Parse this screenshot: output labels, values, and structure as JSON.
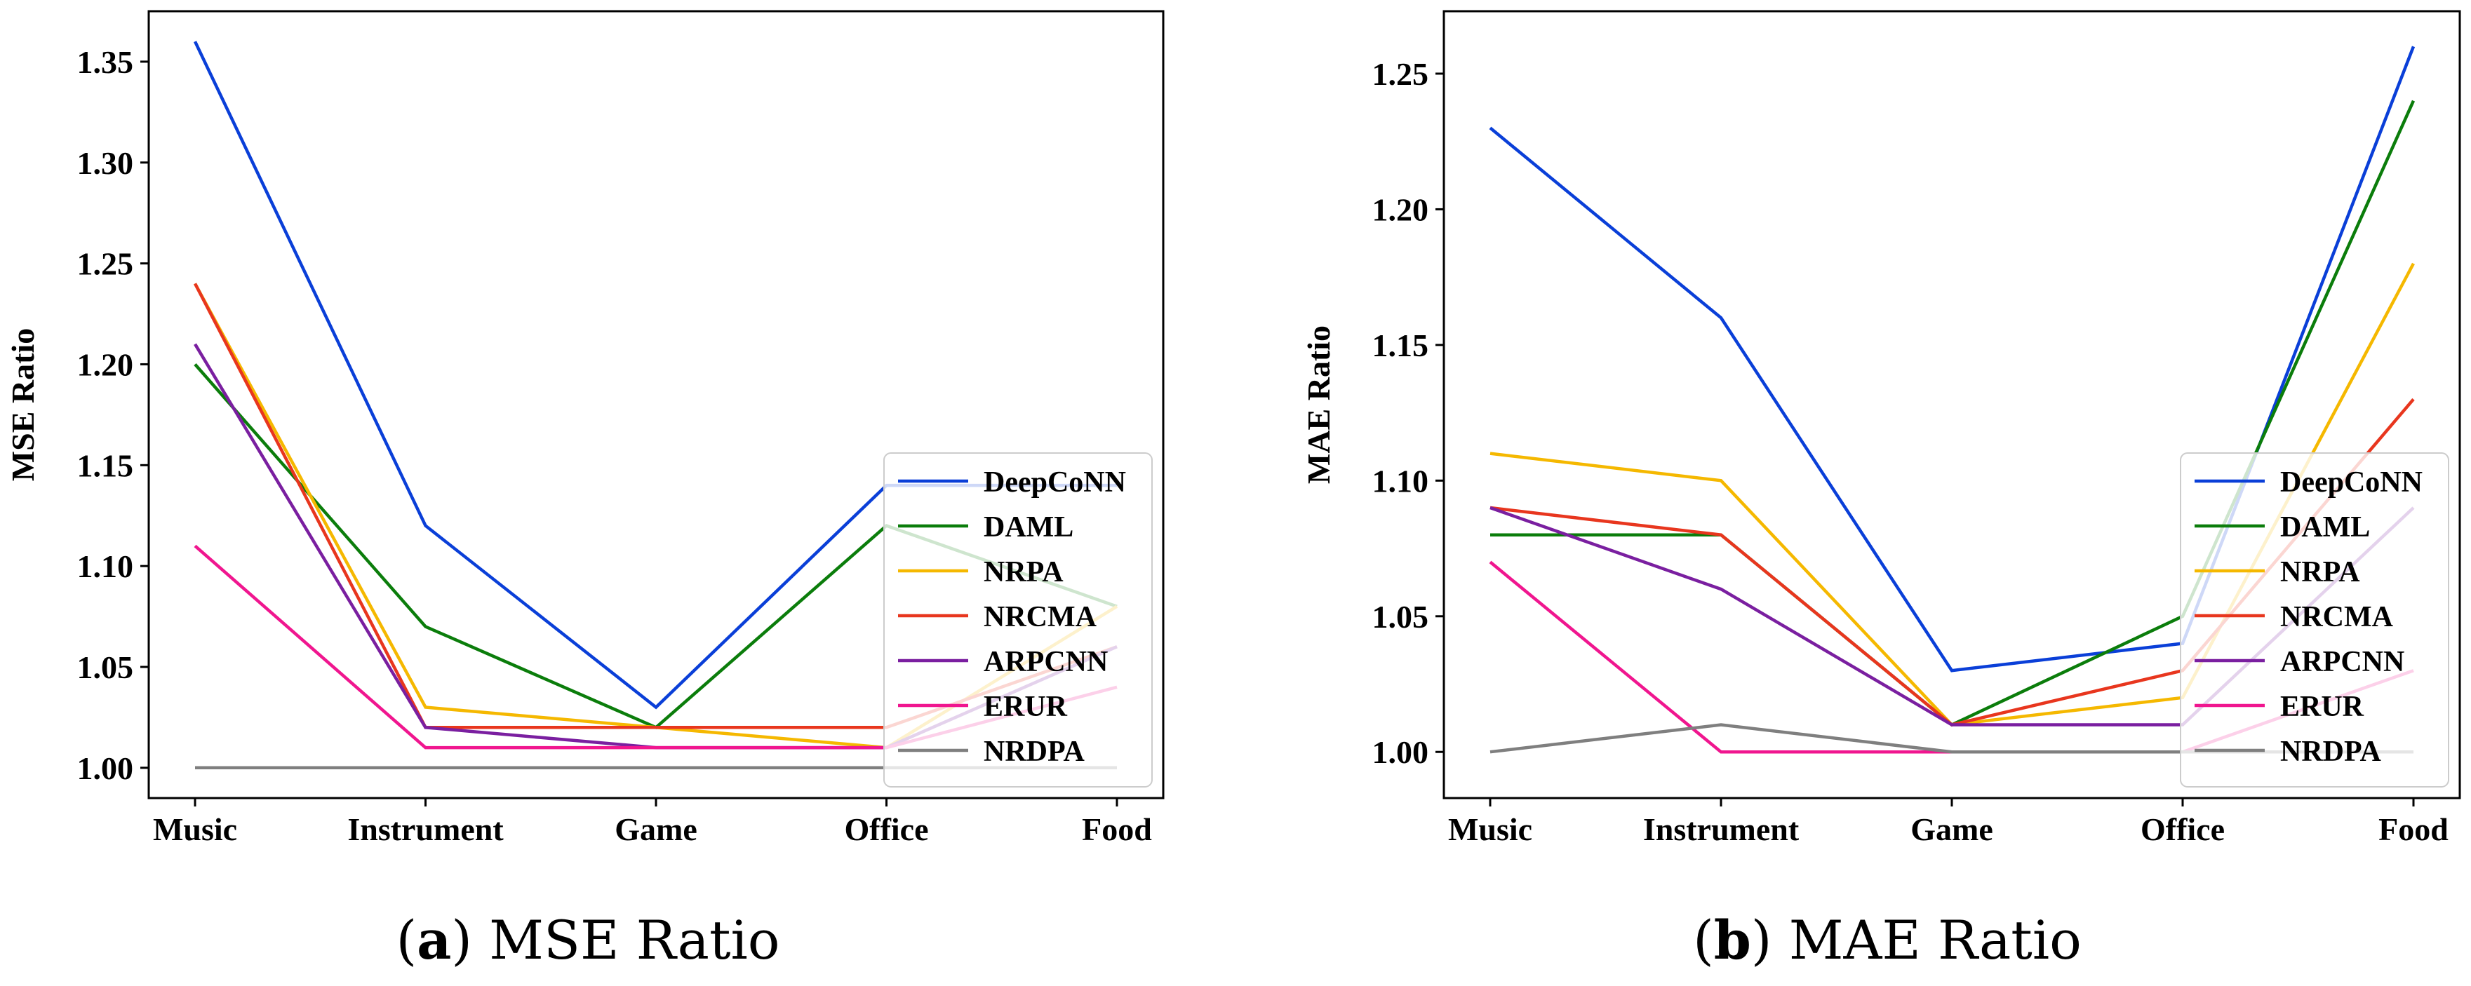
{
  "chart_data": [
    {
      "type": "line",
      "caption_letter": "a",
      "caption_title": "MSE Ratio",
      "ylabel": "MSE Ratio",
      "xlabel": "",
      "categories": [
        "Music",
        "Instrument",
        "Game",
        "Office",
        "Food"
      ],
      "ylim": [
        0.985,
        1.375
      ],
      "yticks": [
        "1.00",
        "1.05",
        "1.10",
        "1.15",
        "1.20",
        "1.25",
        "1.30",
        "1.35"
      ],
      "legend_position": "lower-right",
      "series": [
        {
          "name": "DeepCoNN",
          "color": "#0a3fd8",
          "values": [
            1.36,
            1.12,
            1.03,
            1.14,
            1.14
          ]
        },
        {
          "name": "DAML",
          "color": "#0b7d0b",
          "values": [
            1.2,
            1.07,
            1.02,
            1.12,
            1.08
          ]
        },
        {
          "name": "NRPA",
          "color": "#f5b800",
          "values": [
            1.24,
            1.03,
            1.02,
            1.01,
            1.08
          ]
        },
        {
          "name": "NRCMA",
          "color": "#e8361e",
          "values": [
            1.24,
            1.02,
            1.02,
            1.02,
            1.06
          ]
        },
        {
          "name": "ARPCNN",
          "color": "#7a1fa0",
          "values": [
            1.21,
            1.02,
            1.01,
            1.01,
            1.06
          ]
        },
        {
          "name": "ERUR",
          "color": "#f0168f",
          "values": [
            1.11,
            1.01,
            1.01,
            1.01,
            1.04
          ]
        },
        {
          "name": "NRDPA",
          "color": "#7f7f7f",
          "values": [
            1.0,
            1.0,
            1.0,
            1.0,
            1.0
          ]
        }
      ]
    },
    {
      "type": "line",
      "caption_letter": "b",
      "caption_title": "MAE Ratio",
      "ylabel": "MAE Ratio",
      "xlabel": "",
      "categories": [
        "Music",
        "Instrument",
        "Game",
        "Office",
        "Food"
      ],
      "ylim": [
        0.983,
        1.273
      ],
      "yticks": [
        "1.00",
        "1.05",
        "1.10",
        "1.15",
        "1.20",
        "1.25"
      ],
      "legend_position": "lower-right",
      "series": [
        {
          "name": "DeepCoNN",
          "color": "#0a3fd8",
          "values": [
            1.23,
            1.16,
            1.03,
            1.04,
            1.26
          ]
        },
        {
          "name": "DAML",
          "color": "#0b7d0b",
          "values": [
            1.08,
            1.08,
            1.01,
            1.05,
            1.24
          ]
        },
        {
          "name": "NRPA",
          "color": "#f5b800",
          "values": [
            1.11,
            1.1,
            1.01,
            1.02,
            1.18
          ]
        },
        {
          "name": "NRCMA",
          "color": "#e8361e",
          "values": [
            1.09,
            1.08,
            1.01,
            1.03,
            1.13
          ]
        },
        {
          "name": "ARPCNN",
          "color": "#7a1fa0",
          "values": [
            1.09,
            1.06,
            1.01,
            1.01,
            1.09
          ]
        },
        {
          "name": "ERUR",
          "color": "#f0168f",
          "values": [
            1.07,
            1.0,
            1.0,
            1.0,
            1.03
          ]
        },
        {
          "name": "NRDPA",
          "color": "#7f7f7f",
          "values": [
            1.0,
            1.01,
            1.0,
            1.0,
            1.0
          ]
        }
      ]
    }
  ]
}
